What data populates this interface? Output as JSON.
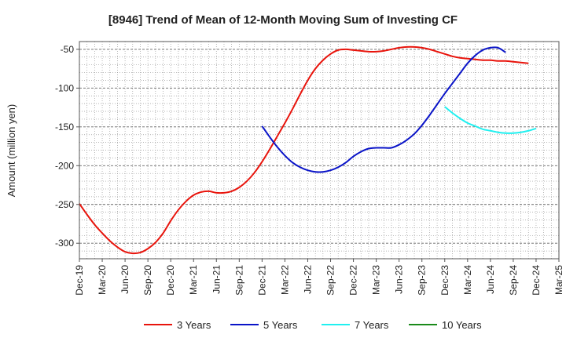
{
  "chart_data": {
    "type": "line",
    "title": "[8946]  Trend of Mean of 12-Month Moving Sum of Investing CF",
    "ylabel": "Amount (million yen)",
    "xlabel": "",
    "ylim": [
      -320,
      -40
    ],
    "yticks": [
      -50,
      -100,
      -150,
      -200,
      -250,
      -300
    ],
    "x_tick_labels": [
      "Dec-19",
      "Mar-20",
      "Jun-20",
      "Sep-20",
      "Dec-20",
      "Mar-21",
      "Jun-21",
      "Sep-21",
      "Dec-21",
      "Mar-22",
      "Jun-22",
      "Sep-22",
      "Dec-22",
      "Mar-23",
      "Jun-23",
      "Sep-23",
      "Dec-23",
      "Mar-24",
      "Jun-24",
      "Sep-24",
      "Dec-24",
      "Mar-25"
    ],
    "grid": true,
    "legend_position": "bottom",
    "series": [
      {
        "name": "3 Years",
        "color": "#e8140c",
        "start_index": 0,
        "values": [
          -249,
          -263,
          -276,
          -287,
          -297,
          -305,
          -311,
          -313,
          -312,
          -307,
          -299,
          -287,
          -271,
          -257,
          -246,
          -238,
          -234,
          -233,
          -235,
          -235,
          -233,
          -228,
          -220,
          -209,
          -195,
          -179,
          -162,
          -145,
          -127,
          -108,
          -90,
          -75,
          -64,
          -56,
          -51,
          -50,
          -51,
          -52,
          -53,
          -53,
          -52,
          -50,
          -48,
          -47,
          -47,
          -48,
          -50,
          -53,
          -56,
          -59,
          -61,
          -62,
          -63,
          -64,
          -64,
          -65,
          -65,
          -66,
          -67,
          -68
        ]
      },
      {
        "name": "5 Years",
        "color": "#0a14c8",
        "start_index": 24,
        "values": [
          -149,
          -163,
          -176,
          -187,
          -196,
          -202,
          -206,
          -208,
          -208,
          -206,
          -202,
          -196,
          -188,
          -182,
          -178,
          -177,
          -177,
          -177,
          -173,
          -167,
          -159,
          -148,
          -135,
          -121,
          -107,
          -94,
          -81,
          -68,
          -58,
          -51,
          -48,
          -48,
          -54
        ]
      },
      {
        "name": "7 Years",
        "color": "#20f0f0",
        "start_index": 48,
        "values": [
          -124,
          -132,
          -139,
          -145,
          -149,
          -153,
          -155,
          -157,
          -158,
          -158,
          -157,
          -155,
          -152
        ]
      },
      {
        "name": "10 Years",
        "color": "#1a8a1a",
        "start_index": 0,
        "values": []
      }
    ]
  }
}
